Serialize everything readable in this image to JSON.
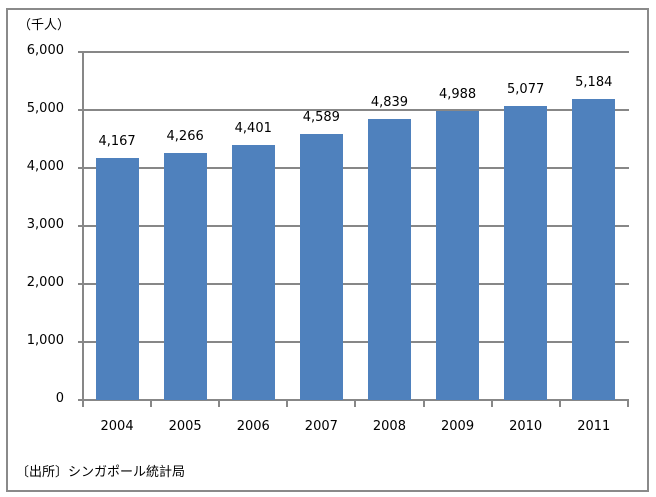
{
  "chart_data": {
    "type": "bar",
    "title": "",
    "unit_label": "（千人）",
    "categories": [
      "2004",
      "2005",
      "2006",
      "2007",
      "2008",
      "2009",
      "2010",
      "2011"
    ],
    "values": [
      4167,
      4266,
      4401,
      4589,
      4839,
      4988,
      5077,
      5184
    ],
    "value_labels": [
      "4,167",
      "4,266",
      "4,401",
      "4,589",
      "4,839",
      "4,988",
      "5,077",
      "5,184"
    ],
    "xlabel": "",
    "ylabel": "（千人）",
    "ylim": [
      0,
      6000
    ],
    "yticks": [
      "0",
      "1,000",
      "2,000",
      "3,000",
      "4,000",
      "5,000",
      "6,000"
    ],
    "grid": true,
    "legend": "none",
    "bar_color": "#4f81bd",
    "source": "〔出所〕シンガポール統計局"
  }
}
